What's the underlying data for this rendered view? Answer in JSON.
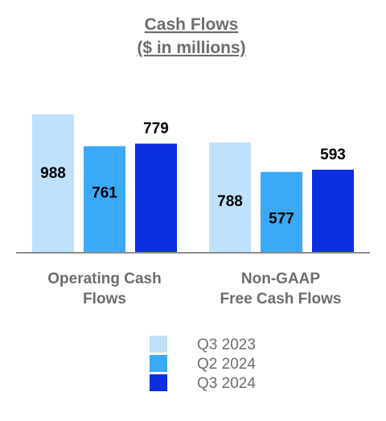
{
  "chart_data": {
    "type": "bar",
    "title": "Cash Flows",
    "subtitle": "($ in millions)",
    "categories": [
      [
        "Operating Cash",
        "Flows"
      ],
      [
        "Non-GAAP",
        "Free Cash Flows"
      ]
    ],
    "series": [
      {
        "name": "Q3 2023",
        "color": "#bfe1fb",
        "values": [
          988,
          788
        ]
      },
      {
        "name": "Q2 2024",
        "color": "#3aa9f7",
        "values": [
          761,
          577
        ]
      },
      {
        "name": "Q3 2024",
        "color": "#0b2ee0",
        "values": [
          779,
          593
        ]
      }
    ],
    "ylim": [
      0,
      1000
    ],
    "grid": false,
    "legend_position": "bottom",
    "data_label_style": {
      "Q3 2023": "inside",
      "Q2 2024": "inside",
      "Q3 2024": "above"
    }
  }
}
